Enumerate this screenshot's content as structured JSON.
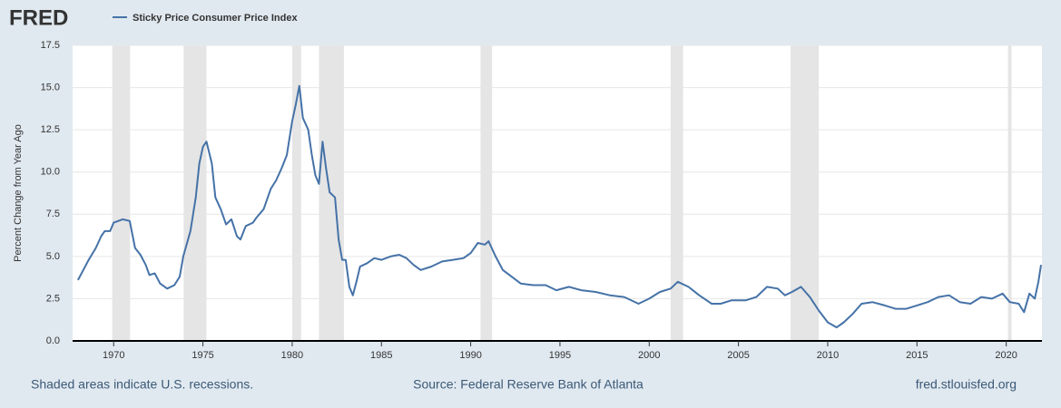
{
  "chart_data": {
    "type": "line",
    "logo": "FRED",
    "ylabel": "Percent Change from Year Ago",
    "recession_note": "Shaded areas indicate U.S. recessions.",
    "source": "Source: Federal Reserve Bank of Atlanta",
    "site": "fred.stlouisfed.org",
    "xlim": [
      1967.7,
      2022.0
    ],
    "xticks": [
      1970,
      1975,
      1980,
      1985,
      1990,
      1995,
      2000,
      2005,
      2010,
      2015,
      2020
    ],
    "ylim": [
      0,
      17.5
    ],
    "yticks": [
      {
        "value": 0,
        "label": "0.0"
      },
      {
        "value": 2.5,
        "label": "2.5"
      },
      {
        "value": 5,
        "label": "5.0"
      },
      {
        "value": 7.5,
        "label": "7.5"
      },
      {
        "value": 10,
        "label": "10.0"
      },
      {
        "value": 12.5,
        "label": "12.5"
      },
      {
        "value": 15,
        "label": "15.0"
      },
      {
        "value": 17.5,
        "label": "17.5"
      }
    ],
    "grid": true,
    "recessions": [
      [
        1969.92,
        1970.92
      ],
      [
        1973.92,
        1975.2
      ],
      [
        1980.0,
        1980.5
      ],
      [
        1981.5,
        1982.9
      ],
      [
        1990.55,
        1991.2
      ],
      [
        2001.2,
        2001.9
      ],
      [
        2007.92,
        2009.5
      ],
      [
        2020.1,
        2020.3
      ]
    ],
    "x": [
      1968.0,
      1968.3,
      1968.6,
      1969.0,
      1969.3,
      1969.5,
      1969.8,
      1970.0,
      1970.5,
      1970.9,
      1971.2,
      1971.5,
      1971.8,
      1972.0,
      1972.3,
      1972.6,
      1973.0,
      1973.4,
      1973.7,
      1973.9,
      1974.3,
      1974.6,
      1974.8,
      1975.0,
      1975.2,
      1975.5,
      1975.7,
      1976.0,
      1976.3,
      1976.6,
      1976.9,
      1977.1,
      1977.4,
      1977.8,
      1978.0,
      1978.4,
      1978.8,
      1979.1,
      1979.4,
      1979.7,
      1980.0,
      1980.2,
      1980.4,
      1980.6,
      1980.9,
      1981.1,
      1981.3,
      1981.5,
      1981.7,
      1981.9,
      1982.1,
      1982.4,
      1982.6,
      1982.8,
      1983.0,
      1983.2,
      1983.4,
      1983.6,
      1983.8,
      1984.2,
      1984.6,
      1985.0,
      1985.5,
      1986.0,
      1986.4,
      1986.8,
      1987.2,
      1987.8,
      1988.4,
      1989.0,
      1989.6,
      1990.0,
      1990.4,
      1990.8,
      1991.0,
      1991.4,
      1991.8,
      1992.3,
      1992.8,
      1993.5,
      1994.2,
      1994.8,
      1995.5,
      1996.2,
      1997.0,
      1997.8,
      1998.6,
      1999.4,
      2000.0,
      2000.6,
      2001.2,
      2001.6,
      2002.2,
      2002.8,
      2003.5,
      2004.0,
      2004.6,
      2005.4,
      2006.0,
      2006.6,
      2007.2,
      2007.6,
      2008.0,
      2008.5,
      2009.0,
      2009.5,
      2010.0,
      2010.5,
      2010.9,
      2011.4,
      2011.9,
      2012.5,
      2013.2,
      2013.8,
      2014.4,
      2015.0,
      2015.6,
      2016.2,
      2016.8,
      2017.4,
      2018.0,
      2018.6,
      2019.2,
      2019.8,
      2020.2,
      2020.7,
      2021.0,
      2021.3,
      2021.6,
      2021.8,
      2021.95
    ],
    "series": [
      {
        "name": "Sticky Price Consumer Price Index",
        "color": "#4572a7",
        "values": [
          3.6,
          4.2,
          4.8,
          5.5,
          6.2,
          6.5,
          6.5,
          7.0,
          7.2,
          7.1,
          5.5,
          5.1,
          4.5,
          3.9,
          4.0,
          3.4,
          3.1,
          3.3,
          3.8,
          5.0,
          6.5,
          8.5,
          10.5,
          11.5,
          11.8,
          10.5,
          8.5,
          7.8,
          6.9,
          7.2,
          6.2,
          6.0,
          6.8,
          7.0,
          7.3,
          7.8,
          9.0,
          9.5,
          10.2,
          11.0,
          13.0,
          14.0,
          15.1,
          13.2,
          12.5,
          11.0,
          9.8,
          9.3,
          11.8,
          10.2,
          8.8,
          8.5,
          6.0,
          4.8,
          4.8,
          3.2,
          2.7,
          3.5,
          4.4,
          4.6,
          4.9,
          4.8,
          5.0,
          5.1,
          4.9,
          4.5,
          4.2,
          4.4,
          4.7,
          4.8,
          4.9,
          5.2,
          5.8,
          5.7,
          5.9,
          5.0,
          4.2,
          3.8,
          3.4,
          3.3,
          3.3,
          3.0,
          3.2,
          3.0,
          2.9,
          2.7,
          2.6,
          2.2,
          2.5,
          2.9,
          3.1,
          3.5,
          3.2,
          2.7,
          2.2,
          2.2,
          2.4,
          2.4,
          2.6,
          3.2,
          3.1,
          2.7,
          2.9,
          3.2,
          2.6,
          1.8,
          1.1,
          0.8,
          1.1,
          1.6,
          2.2,
          2.3,
          2.1,
          1.9,
          1.9,
          2.1,
          2.3,
          2.6,
          2.7,
          2.3,
          2.2,
          2.6,
          2.5,
          2.8,
          2.3,
          2.2,
          1.7,
          2.8,
          2.5,
          3.5,
          4.5
        ]
      }
    ]
  }
}
